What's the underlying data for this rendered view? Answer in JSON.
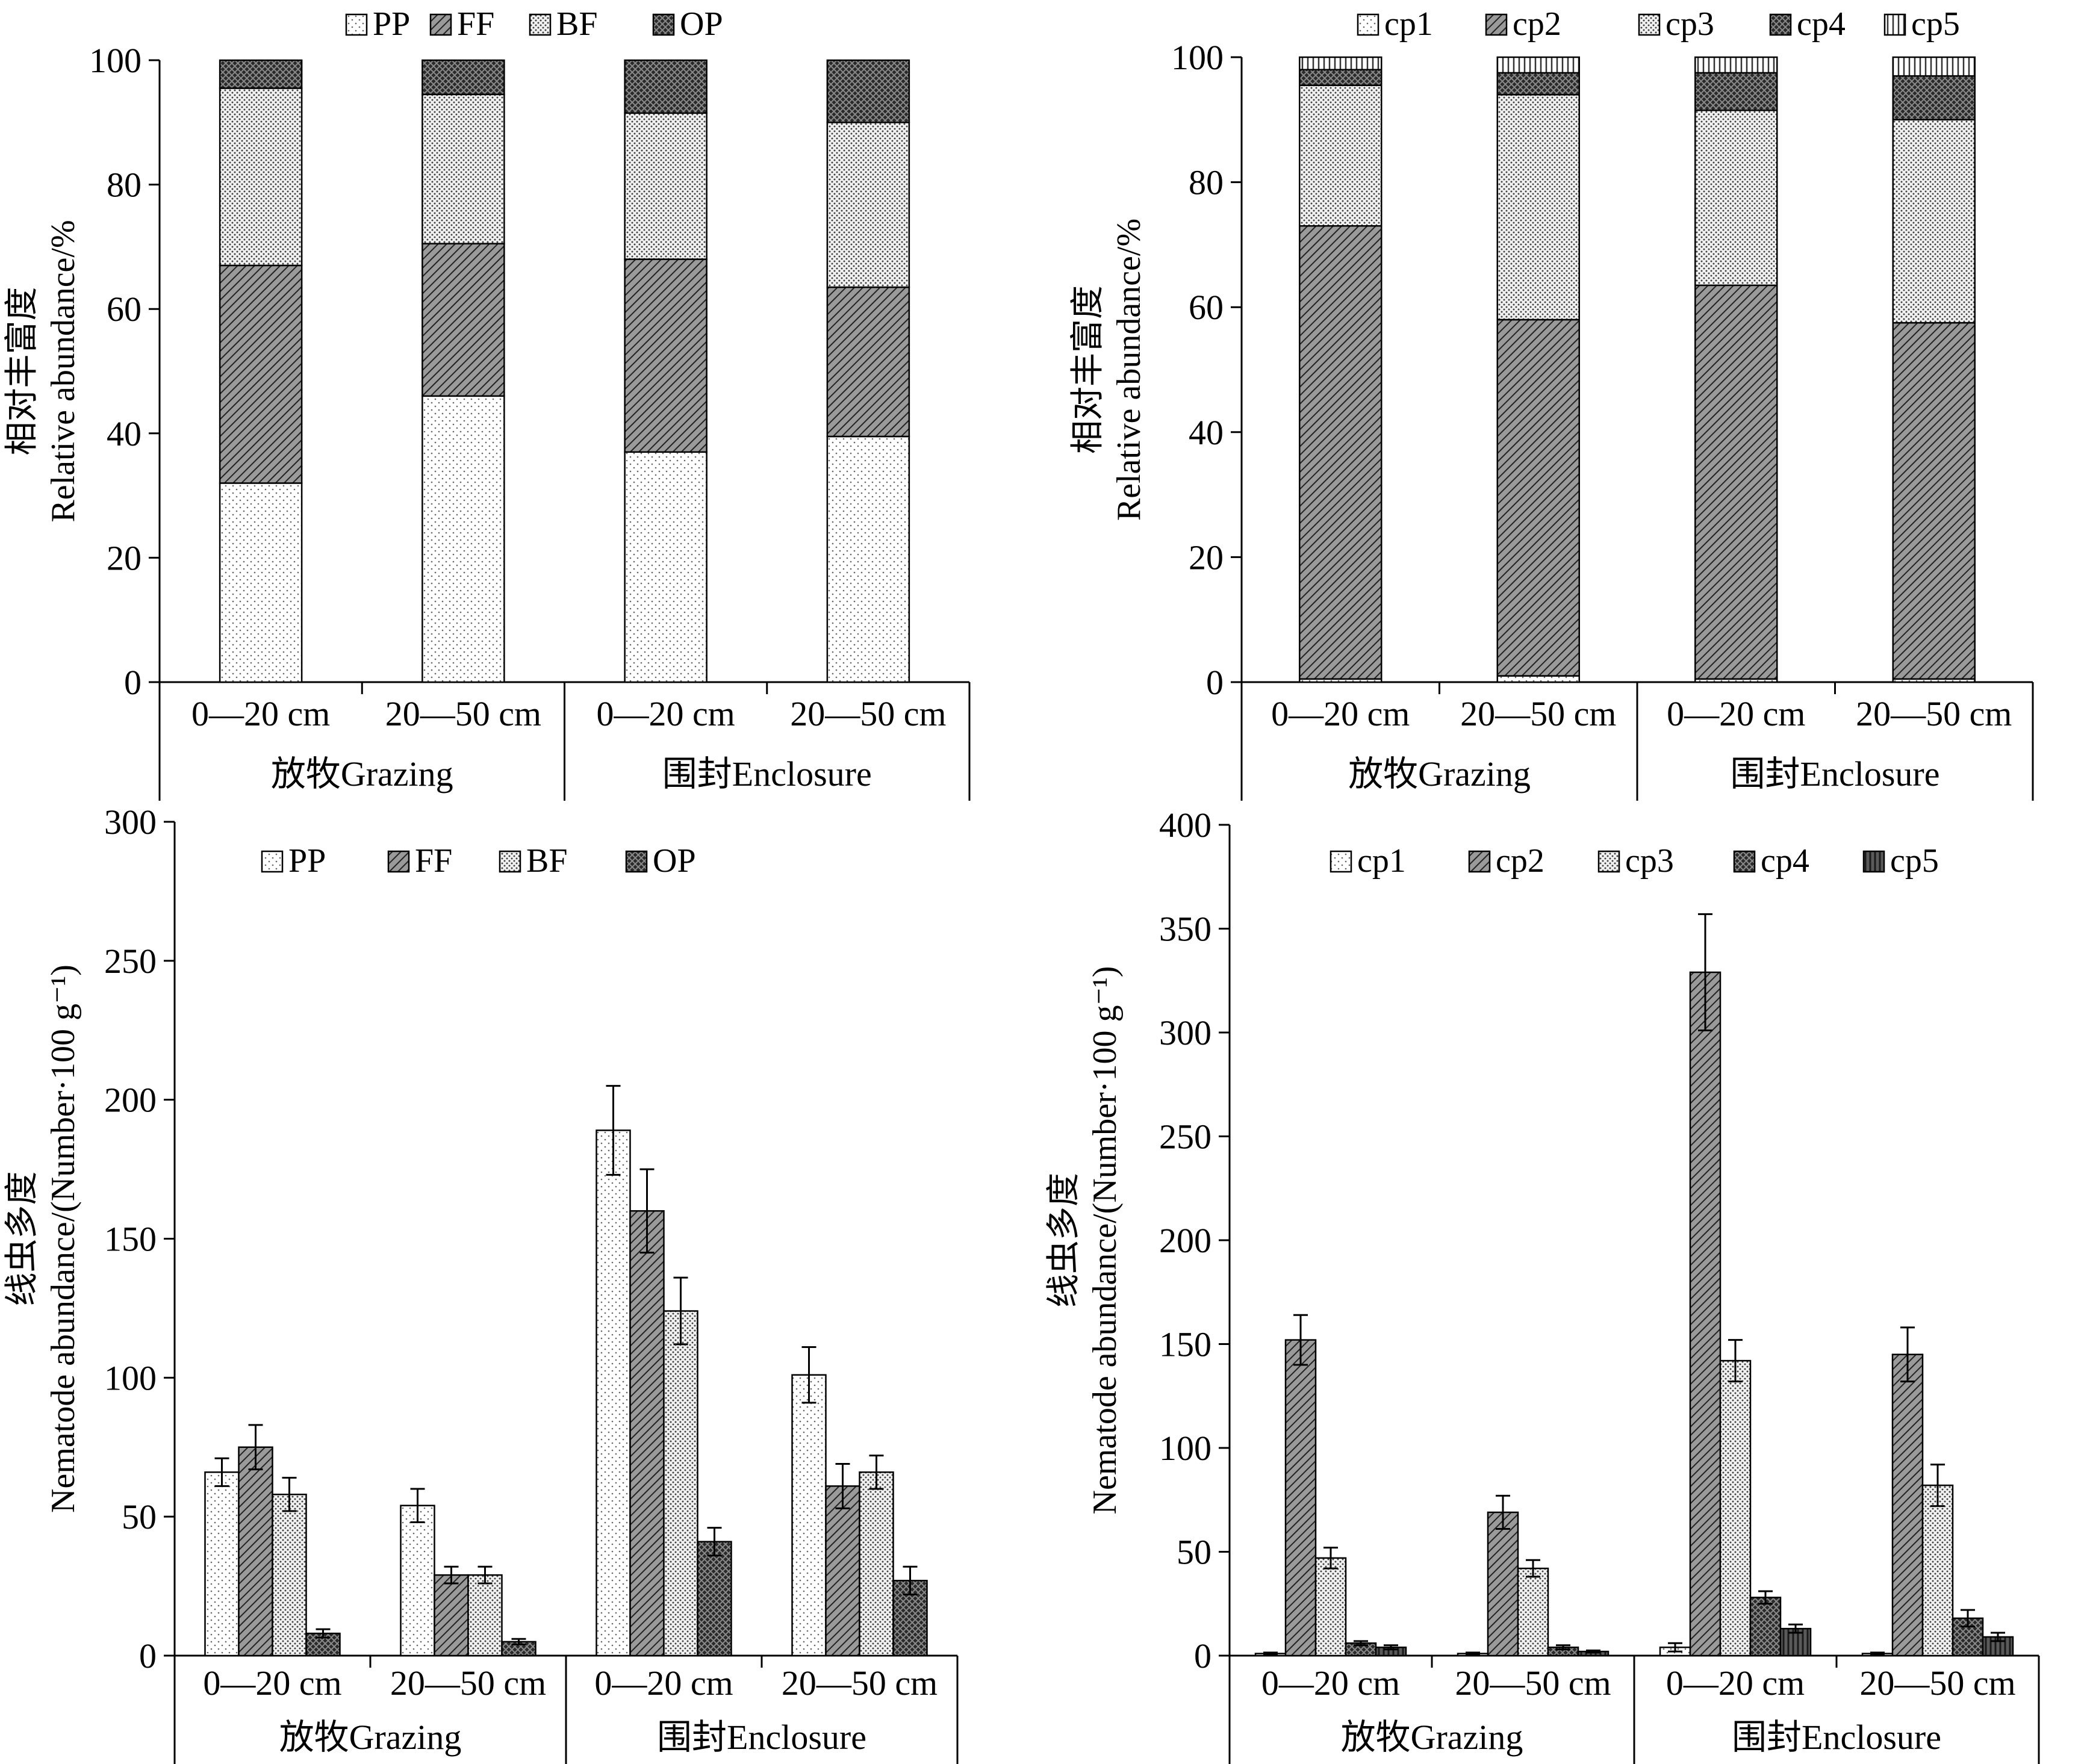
{
  "chart_data": [
    {
      "id": "top-left",
      "type": "bar",
      "stacked": true,
      "ylabel": "相对丰富度\nRelative abundance/%",
      "ylim": [
        0,
        100
      ],
      "yticks": [
        0,
        20,
        40,
        60,
        80,
        100
      ],
      "categories": [
        "0—20 cm",
        "20—50 cm",
        "0—20 cm",
        "20—50 cm"
      ],
      "groups": [
        {
          "label": "放牧Grazing",
          "span": [
            0,
            1
          ]
        },
        {
          "label": "围封Enclosure",
          "span": [
            2,
            3
          ]
        }
      ],
      "legend_position": "top",
      "series": [
        {
          "name": "PP",
          "pattern": "dots-light",
          "values": [
            32,
            46,
            37,
            39.5
          ]
        },
        {
          "name": "FF",
          "pattern": "diag-right",
          "values": [
            35,
            24.5,
            31,
            24
          ]
        },
        {
          "name": "BF",
          "pattern": "dots-dense",
          "values": [
            28.5,
            24,
            23.5,
            26.5
          ]
        },
        {
          "name": "OP",
          "pattern": "cross-dark",
          "values": [
            4.5,
            5.5,
            8.5,
            10
          ]
        }
      ]
    },
    {
      "id": "top-right",
      "type": "bar",
      "stacked": true,
      "ylabel": "相对丰富度\nRelative abundance/%",
      "ylim": [
        0,
        100
      ],
      "yticks": [
        0,
        20,
        40,
        60,
        80,
        100
      ],
      "categories": [
        "0—20 cm",
        "20—50 cm",
        "0—20 cm",
        "20—50 cm"
      ],
      "groups": [
        {
          "label": "放牧Grazing",
          "span": [
            0,
            1
          ]
        },
        {
          "label": "围封Enclosure",
          "span": [
            2,
            3
          ]
        }
      ],
      "legend_position": "top",
      "series": [
        {
          "name": "cp1",
          "pattern": "dots-light",
          "values": [
            0.5,
            1,
            0.5,
            0.5
          ]
        },
        {
          "name": "cp2",
          "pattern": "diag-right",
          "values": [
            72.5,
            57,
            63,
            57
          ]
        },
        {
          "name": "cp3",
          "pattern": "dots-dense",
          "values": [
            22.5,
            36,
            28,
            32.5
          ]
        },
        {
          "name": "cp4",
          "pattern": "cross-dark",
          "values": [
            2.5,
            3.5,
            6,
            7
          ]
        },
        {
          "name": "cp5",
          "pattern": "vert-lines",
          "values": [
            2,
            2.5,
            2.5,
            3
          ]
        }
      ]
    },
    {
      "id": "bottom-left",
      "type": "bar",
      "stacked": false,
      "ylabel": "线虫多度\nNematode abundance/(Number·100 g⁻¹)",
      "ylim": [
        0,
        300
      ],
      "yticks": [
        0,
        50,
        100,
        150,
        200,
        250,
        300
      ],
      "categories": [
        "0—20 cm",
        "20—50 cm",
        "0—20 cm",
        "20—50 cm"
      ],
      "groups": [
        {
          "label": "放牧Grazing",
          "span": [
            0,
            1
          ]
        },
        {
          "label": "围封Enclosure",
          "span": [
            2,
            3
          ]
        }
      ],
      "legend_position": "top",
      "series": [
        {
          "name": "PP",
          "pattern": "dots-light",
          "values": [
            66,
            54,
            189,
            101
          ],
          "errors": [
            5,
            6,
            16,
            10
          ]
        },
        {
          "name": "FF",
          "pattern": "diag-right",
          "values": [
            75,
            29,
            160,
            61
          ],
          "errors": [
            8,
            3,
            15,
            8
          ]
        },
        {
          "name": "BF",
          "pattern": "dots-dense",
          "values": [
            58,
            29,
            124,
            66
          ],
          "errors": [
            6,
            3,
            12,
            6
          ]
        },
        {
          "name": "OP",
          "pattern": "cross-dark",
          "values": [
            8,
            5,
            41,
            27
          ],
          "errors": [
            1.5,
            1,
            5,
            5
          ]
        }
      ]
    },
    {
      "id": "bottom-right",
      "type": "bar",
      "stacked": false,
      "ylabel": "线虫多度\nNematode abundance/(Number·100 g⁻¹)",
      "ylim": [
        0,
        400
      ],
      "yticks": [
        0,
        50,
        100,
        150,
        200,
        250,
        300,
        350,
        400
      ],
      "categories": [
        "0—20 cm",
        "20—50 cm",
        "0—20 cm",
        "20—50 cm"
      ],
      "groups": [
        {
          "label": "放牧Grazing",
          "span": [
            0,
            1
          ]
        },
        {
          "label": "围封Enclosure",
          "span": [
            2,
            3
          ]
        }
      ],
      "legend_position": "top",
      "series": [
        {
          "name": "cp1",
          "pattern": "dots-light",
          "values": [
            1,
            1,
            4,
            1
          ],
          "errors": [
            0.5,
            0.5,
            2,
            0.5
          ]
        },
        {
          "name": "cp2",
          "pattern": "diag-right",
          "values": [
            152,
            69,
            329,
            145
          ],
          "errors": [
            12,
            8,
            28,
            13
          ]
        },
        {
          "name": "cp3",
          "pattern": "dots-dense",
          "values": [
            47,
            42,
            142,
            82
          ],
          "errors": [
            5,
            4,
            10,
            10
          ]
        },
        {
          "name": "cp4",
          "pattern": "cross-dark",
          "values": [
            6,
            4,
            28,
            18
          ],
          "errors": [
            1,
            1,
            3,
            4
          ]
        },
        {
          "name": "cp5",
          "pattern": "dark-vert",
          "values": [
            4,
            2,
            13,
            9
          ],
          "errors": [
            1,
            0.5,
            2,
            2
          ]
        }
      ]
    }
  ]
}
